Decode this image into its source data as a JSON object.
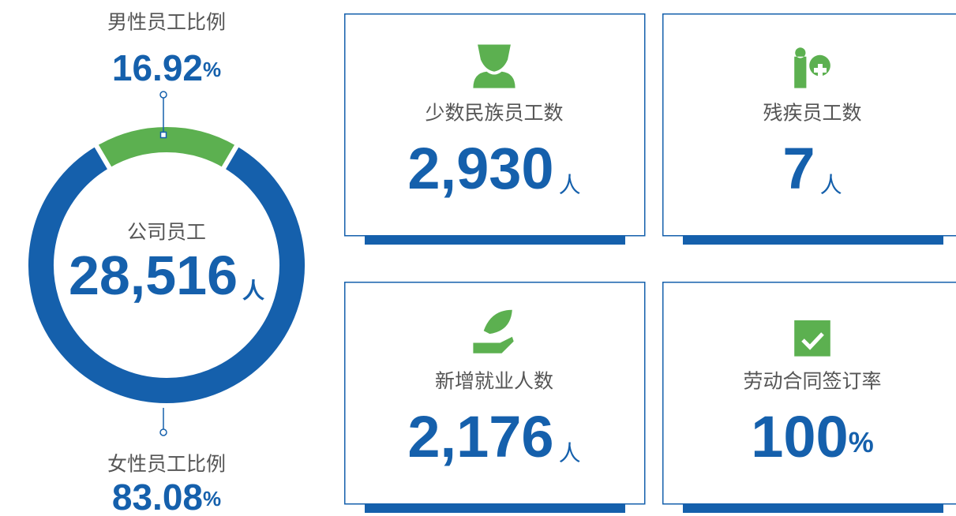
{
  "chart_data": {
    "type": "pie",
    "donut": true,
    "categories": [
      "男性员工比例",
      "女性员工比例"
    ],
    "values": [
      16.92,
      83.08
    ],
    "unit": "%",
    "colors": [
      "#5cb050",
      "#1560ac"
    ],
    "center_label": "公司员工",
    "center_value": "28,516",
    "center_unit": "人"
  },
  "cards": [
    {
      "label": "少数民族员工数",
      "value": "2,930",
      "unit": "人"
    },
    {
      "label": "残疾员工数",
      "value": "7",
      "unit": "人"
    },
    {
      "label": "新增就业人数",
      "value": "2,176",
      "unit": "人"
    },
    {
      "label": "劳动合同签订率",
      "value": "100",
      "unit": "%"
    }
  ]
}
